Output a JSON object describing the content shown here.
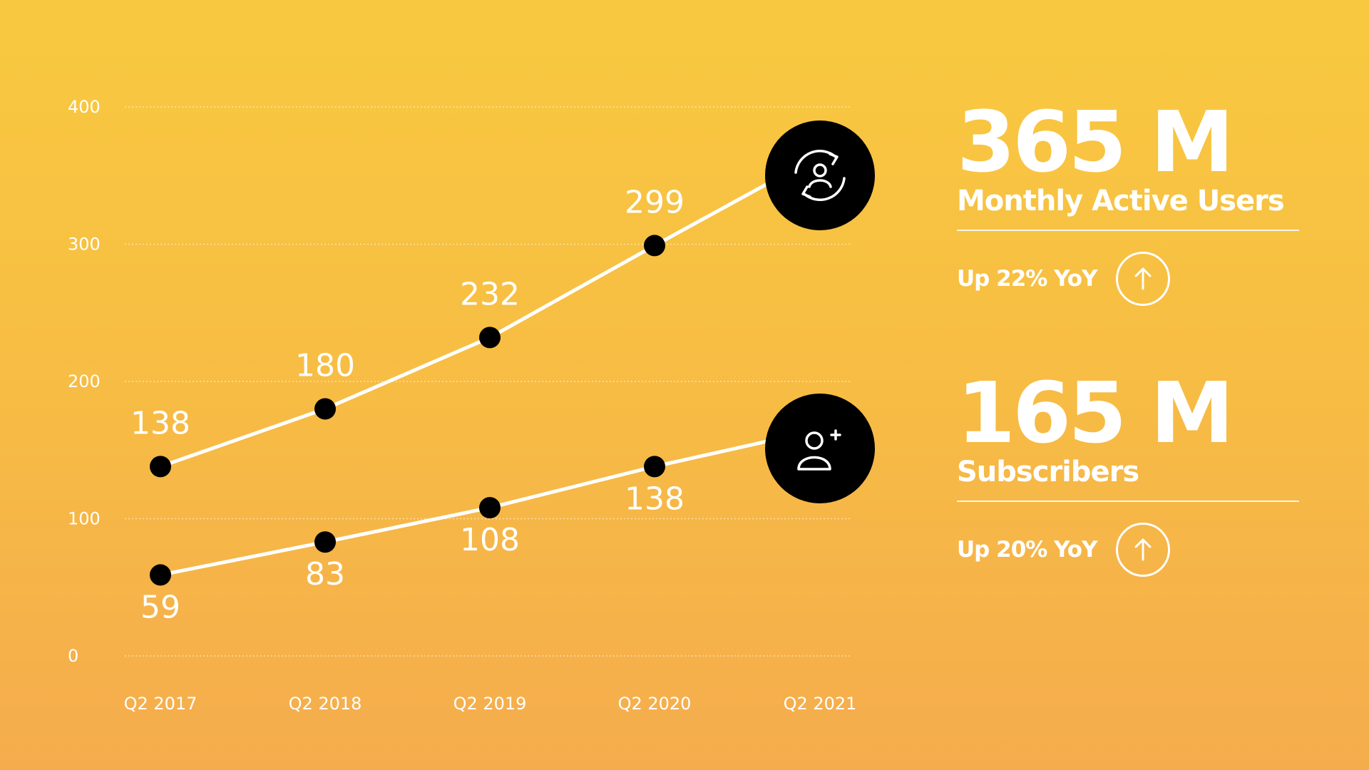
{
  "chart_data": {
    "type": "line",
    "categories": [
      "Q2  2017",
      "Q2  2018",
      "Q2  2019",
      "Q2 2020",
      "Q2 2021"
    ],
    "y_ticks": [
      "400",
      "300",
      "200",
      "100",
      "0"
    ],
    "ylim": [
      0,
      400
    ],
    "grid": true,
    "series": [
      {
        "values": [
          138,
          180,
          232,
          299,
          365
        ],
        "data_labels": [
          "138",
          "180",
          "232",
          "299"
        ],
        "end_icon": "user-sync-icon"
      },
      {
        "values": [
          59,
          83,
          108,
          138,
          165
        ],
        "data_labels": [
          "59",
          "83",
          "108",
          "138"
        ],
        "end_icon": "add-user-icon"
      }
    ]
  },
  "stats": [
    {
      "value": "365 M",
      "title": "Monthly Active Users",
      "change": "Up 22% YoY",
      "icon": "arrow-up-icon"
    },
    {
      "value": "165 M",
      "title": "Subscribers",
      "change": "Up 20% YoY",
      "icon": "arrow-up-icon"
    }
  ],
  "colors": {
    "background_top": "#F8C940",
    "background_bottom": "#F5AC4D",
    "line": "#FFFFFF",
    "marker": "#000000",
    "text": "#FFFFFF"
  }
}
